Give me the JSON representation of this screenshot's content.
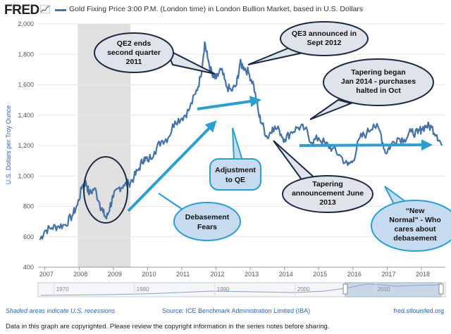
{
  "header": {
    "logo": "FRED",
    "logo_icon": "chart-trend-icon",
    "series_title": "Gold Fixing Price 3:00 P.M. (London time) in London Bullion Market, based in U.S. Dollars"
  },
  "footer": {
    "recessions_note": "Shaded areas indicate U.S. recessions",
    "source": "Source: ICE Benchmark Administration Limited (IBA)",
    "url": "fred.stlouisfed.org",
    "copyright": "Data in this graph are copyrighted. Please review the copyright information in the series notes before sharing."
  },
  "colors": {
    "series": "#4572a7",
    "recession_shade": "#e0e0e0",
    "callout_fill": "#dfe3ea",
    "callout_blue_fill": "#c6dbef",
    "arrow": "#2a9fd0"
  },
  "chart_data": {
    "type": "line",
    "title": "Gold Fixing Price 3:00 P.M. (London time) in London Bullion Market, based in U.S. Dollars",
    "xlabel": "",
    "ylabel": "U.S. Dollars per Troy Ounce",
    "xlim": [
      2006.8,
      2018.7
    ],
    "ylim": [
      400,
      2000
    ],
    "yticks": [
      400,
      600,
      800,
      1000,
      1200,
      1400,
      1600,
      1800,
      2000
    ],
    "ytick_labels": [
      "400",
      "600",
      "800",
      "1,000",
      "1,200",
      "1,400",
      "1,600",
      "1,800",
      "2,000"
    ],
    "xticks": [
      2007,
      2008,
      2009,
      2010,
      2011,
      2012,
      2013,
      2014,
      2015,
      2016,
      2017,
      2018
    ],
    "xtick_labels": [
      "2007",
      "2008",
      "2009",
      "2010",
      "2011",
      "2012",
      "2013",
      "2014",
      "2015",
      "2016",
      "2017",
      "2018"
    ],
    "recessions": [
      [
        2007.96,
        2009.5
      ]
    ],
    "series": [
      {
        "x": [
          2006.85,
          2007.0,
          2007.2,
          2007.4,
          2007.6,
          2007.8,
          2007.95,
          2008.1,
          2008.2,
          2008.3,
          2008.45,
          2008.6,
          2008.7,
          2008.8,
          2008.9,
          2009.0,
          2009.15,
          2009.3,
          2009.45,
          2009.6,
          2009.75,
          2009.9,
          2010.0,
          2010.2,
          2010.4,
          2010.6,
          2010.8,
          2011.0,
          2011.2,
          2011.4,
          2011.55,
          2011.67,
          2011.75,
          2011.9,
          2012.0,
          2012.15,
          2012.3,
          2012.45,
          2012.6,
          2012.7,
          2012.8,
          2012.95,
          2013.1,
          2013.25,
          2013.35,
          2013.5,
          2013.65,
          2013.85,
          2014.0,
          2014.2,
          2014.4,
          2014.6,
          2014.8,
          2015.0,
          2015.2,
          2015.4,
          2015.6,
          2015.85,
          2016.0,
          2016.2,
          2016.4,
          2016.6,
          2016.8,
          2016.95,
          2017.1,
          2017.3,
          2017.5,
          2017.7,
          2017.9,
          2018.0,
          2018.15,
          2018.3,
          2018.45,
          2018.6
        ],
        "y": [
          580,
          640,
          660,
          670,
          680,
          740,
          810,
          940,
          960,
          880,
          920,
          820,
          760,
          720,
          800,
          860,
          920,
          940,
          950,
          990,
          1050,
          1120,
          1100,
          1160,
          1230,
          1250,
          1360,
          1380,
          1430,
          1540,
          1650,
          1880,
          1780,
          1650,
          1640,
          1700,
          1590,
          1560,
          1600,
          1740,
          1720,
          1680,
          1600,
          1400,
          1340,
          1250,
          1320,
          1300,
          1240,
          1290,
          1320,
          1310,
          1220,
          1250,
          1210,
          1180,
          1140,
          1070,
          1100,
          1250,
          1280,
          1340,
          1290,
          1150,
          1200,
          1250,
          1240,
          1290,
          1280,
          1310,
          1330,
          1320,
          1270,
          1200
        ]
      }
    ],
    "annotations": [
      "QE2 ends second quarter 2011",
      "QE3 announced in Sept 2012",
      "Tapering began Jan 2014 - purchases halted in Oct",
      "Adjustment to QE",
      "Debasement Fears",
      "Tapering announcement June 2013",
      "“New Normal” - Who cares about debasement"
    ]
  },
  "navigator": {
    "tick_labels": [
      "1970",
      "1980",
      "1990",
      "2000",
      "2010"
    ],
    "tick_years": [
      1970,
      1980,
      1990,
      2000,
      2010
    ]
  },
  "callouts": {
    "qe2_ends": [
      "QE2 ends",
      "second quarter",
      "2011"
    ],
    "qe3": [
      "QE3 announced in",
      "Sept 2012"
    ],
    "tapering_began": [
      "Tapering began",
      "Jan 2014 - purchases",
      "halted in Oct"
    ],
    "adjustment": [
      "Adjustment",
      "to QE"
    ],
    "debasement": [
      "Debasement",
      "Fears"
    ],
    "tapering_announce": [
      "Tapering",
      "announcement June",
      "2013"
    ],
    "new_normal": [
      "“New",
      "Normal” - Who",
      "cares about",
      "debasement"
    ]
  }
}
